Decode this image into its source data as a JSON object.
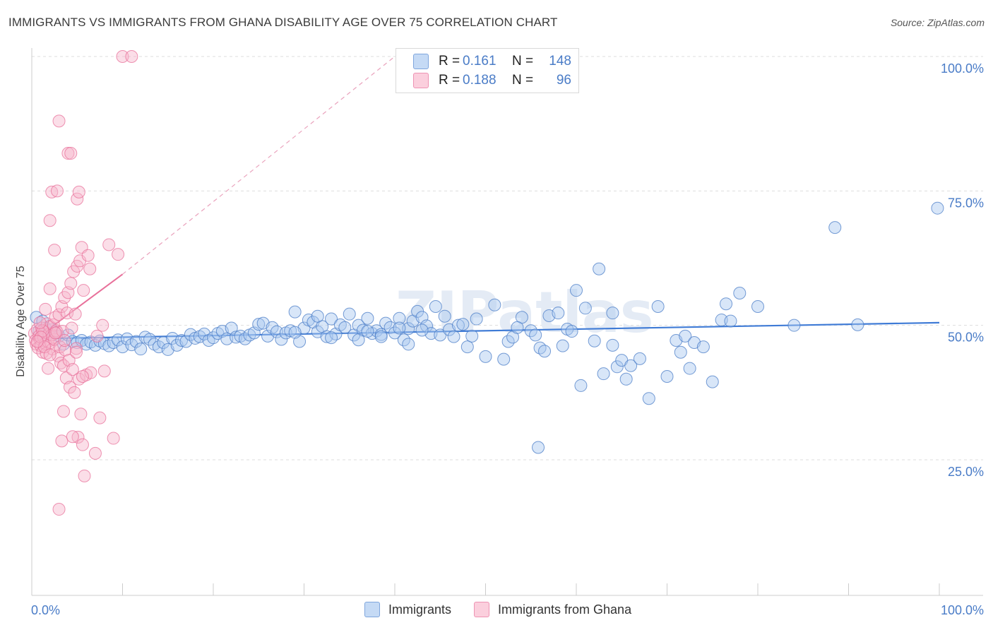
{
  "title": "IMMIGRANTS VS IMMIGRANTS FROM GHANA DISABILITY AGE OVER 75 CORRELATION CHART",
  "source": "Source: ZipAtlas.com",
  "watermark": "ZIPatlas",
  "legend": {
    "rows": [
      {
        "r_label": "R =",
        "r_value": "0.161",
        "n_label": "N =",
        "n_value": "148",
        "color": "#a8c8f0"
      },
      {
        "r_label": "R =",
        "r_value": "0.188",
        "n_label": "N =",
        "n_value": "96",
        "color": "#f7b6cb"
      }
    ]
  },
  "bottom_legend": [
    {
      "label": "Immigrants",
      "color": "#a8c8f0"
    },
    {
      "label": "Immigrants from Ghana",
      "color": "#f7b6cb"
    }
  ],
  "chart_data": {
    "type": "scatter",
    "title": "IMMIGRANTS VS IMMIGRANTS FROM GHANA DISABILITY AGE OVER 75 CORRELATION CHART",
    "xlabel": "",
    "ylabel": "Disability Age Over 75",
    "xlim": [
      0,
      100
    ],
    "ylim": [
      0,
      100
    ],
    "x_tick_labels": [
      "0.0%",
      "100.0%"
    ],
    "y_tick_labels": [
      "25.0%",
      "50.0%",
      "75.0%",
      "100.0%"
    ],
    "y_ticks": [
      25,
      50,
      75,
      100
    ],
    "grid": true,
    "legend_position": "top-center",
    "series": [
      {
        "name": "Immigrants",
        "color": "#4a7cc7",
        "fill": "#a8c8f0",
        "trend": {
          "x": [
            0,
            100
          ],
          "y": [
            47.5,
            50.5
          ],
          "style": "solid"
        },
        "points": [
          [
            0.5,
            51.5
          ],
          [
            0.8,
            49.0
          ],
          [
            1.2,
            50.8
          ],
          [
            1.5,
            49.5
          ],
          [
            1.8,
            48.3
          ],
          [
            2.2,
            49.2
          ],
          [
            2.5,
            48.8
          ],
          [
            3.0,
            48.0
          ],
          [
            3.5,
            46.5
          ],
          [
            4.0,
            48.2
          ],
          [
            4.5,
            47.0
          ],
          [
            5.0,
            46.8
          ],
          [
            5.5,
            47.2
          ],
          [
            6.0,
            46.5
          ],
          [
            6.5,
            46.9
          ],
          [
            7.0,
            46.3
          ],
          [
            7.5,
            47.1
          ],
          [
            8.0,
            46.6
          ],
          [
            8.5,
            46.2
          ],
          [
            9.0,
            46.8
          ],
          [
            9.5,
            47.3
          ],
          [
            10.0,
            46.0
          ],
          [
            10.5,
            47.5
          ],
          [
            11.0,
            46.4
          ],
          [
            11.5,
            47.0
          ],
          [
            12.0,
            45.6
          ],
          [
            12.5,
            47.8
          ],
          [
            13.0,
            47.4
          ],
          [
            13.5,
            46.5
          ],
          [
            14.0,
            46.0
          ],
          [
            14.5,
            46.8
          ],
          [
            15.0,
            45.5
          ],
          [
            15.5,
            47.6
          ],
          [
            16.0,
            46.3
          ],
          [
            16.5,
            47.2
          ],
          [
            17.0,
            47.0
          ],
          [
            17.5,
            48.3
          ],
          [
            18.0,
            47.6
          ],
          [
            18.5,
            47.9
          ],
          [
            19.0,
            48.4
          ],
          [
            19.5,
            47.2
          ],
          [
            20.0,
            47.7
          ],
          [
            20.5,
            48.5
          ],
          [
            21.0,
            48.9
          ],
          [
            21.5,
            47.5
          ],
          [
            22.0,
            49.5
          ],
          [
            22.5,
            47.8
          ],
          [
            23.0,
            48.0
          ],
          [
            23.5,
            47.5
          ],
          [
            24.0,
            48.2
          ],
          [
            24.5,
            48.6
          ],
          [
            25.0,
            50.2
          ],
          [
            25.5,
            50.4
          ],
          [
            26.0,
            48.0
          ],
          [
            26.5,
            49.6
          ],
          [
            27.0,
            48.8
          ],
          [
            27.5,
            47.4
          ],
          [
            28.0,
            48.6
          ],
          [
            28.5,
            49.0
          ],
          [
            29.0,
            52.5
          ],
          [
            29.5,
            47.0
          ],
          [
            30.0,
            49.5
          ],
          [
            30.5,
            51.0
          ],
          [
            31.0,
            50.6
          ],
          [
            31.5,
            48.8
          ],
          [
            32.0,
            49.8
          ],
          [
            32.5,
            47.9
          ],
          [
            33.0,
            51.2
          ],
          [
            33.5,
            48.4
          ],
          [
            34.0,
            50.1
          ],
          [
            34.5,
            49.6
          ],
          [
            35.0,
            52.1
          ],
          [
            35.5,
            48.2
          ],
          [
            36.0,
            50.0
          ],
          [
            36.5,
            49.1
          ],
          [
            37.0,
            51.3
          ],
          [
            37.5,
            48.5
          ],
          [
            38.0,
            49.0
          ],
          [
            38.5,
            48.3
          ],
          [
            39.0,
            50.4
          ],
          [
            39.5,
            49.6
          ],
          [
            40.0,
            48.6
          ],
          [
            40.5,
            51.3
          ],
          [
            41.0,
            47.3
          ],
          [
            41.5,
            49.4
          ],
          [
            42.0,
            50.8
          ],
          [
            42.5,
            52.6
          ],
          [
            43.0,
            51.5
          ],
          [
            43.5,
            49.9
          ],
          [
            44.0,
            48.5
          ],
          [
            44.5,
            53.5
          ],
          [
            45.0,
            48.2
          ],
          [
            45.5,
            51.7
          ],
          [
            46.0,
            49.2
          ],
          [
            46.5,
            47.9
          ],
          [
            47.0,
            50.0
          ],
          [
            48.0,
            46.0
          ],
          [
            48.5,
            48.0
          ],
          [
            49.0,
            51.2
          ],
          [
            50.0,
            44.2
          ],
          [
            51.0,
            53.8
          ],
          [
            52.0,
            43.7
          ],
          [
            52.5,
            47.0
          ],
          [
            53.0,
            47.8
          ],
          [
            54.0,
            51.5
          ],
          [
            55.0,
            49.0
          ],
          [
            55.5,
            48.2
          ],
          [
            56.0,
            45.8
          ],
          [
            56.5,
            45.2
          ],
          [
            57.0,
            51.8
          ],
          [
            58.0,
            52.3
          ],
          [
            59.0,
            49.3
          ],
          [
            60.0,
            56.5
          ],
          [
            60.5,
            38.8
          ],
          [
            61.0,
            53.2
          ],
          [
            62.0,
            47.1
          ],
          [
            62.5,
            60.5
          ],
          [
            63.0,
            41.0
          ],
          [
            64.0,
            52.3
          ],
          [
            64.5,
            42.3
          ],
          [
            65.0,
            43.5
          ],
          [
            65.5,
            40.0
          ],
          [
            66.0,
            42.5
          ],
          [
            67.0,
            43.8
          ],
          [
            68.0,
            36.4
          ],
          [
            69.0,
            53.5
          ],
          [
            70.0,
            40.5
          ],
          [
            71.0,
            47.2
          ],
          [
            71.5,
            45.0
          ],
          [
            72.0,
            48.0
          ],
          [
            73.0,
            46.8
          ],
          [
            74.0,
            46.0
          ],
          [
            75.0,
            39.5
          ],
          [
            76.0,
            51.0
          ],
          [
            76.5,
            54.0
          ],
          [
            77.0,
            50.8
          ],
          [
            78.0,
            56.0
          ],
          [
            80.0,
            53.5
          ],
          [
            55.8,
            27.3
          ],
          [
            88.5,
            68.2
          ],
          [
            91.0,
            50.1
          ],
          [
            99.8,
            71.8
          ],
          [
            41.5,
            46.5
          ],
          [
            36.0,
            47.3
          ],
          [
            33.0,
            47.7
          ],
          [
            29.0,
            48.7
          ],
          [
            31.5,
            51.7
          ],
          [
            38.5,
            47.9
          ],
          [
            40.5,
            49.5
          ],
          [
            47.5,
            50.2
          ],
          [
            53.5,
            49.6
          ],
          [
            58.5,
            46.2
          ],
          [
            59.5,
            48.9
          ],
          [
            64.0,
            46.3
          ],
          [
            72.5,
            42.0
          ],
          [
            84.0,
            50.0
          ],
          [
            37.0,
            48.9
          ],
          [
            43.0,
            49.1
          ]
        ]
      },
      {
        "name": "Immigrants from Ghana",
        "color": "#e8709a",
        "fill": "#f7b6cb",
        "trend": {
          "x": [
            0,
            10
          ],
          "y": [
            47.0,
            59.5
          ],
          "style": "solid",
          "extension_to": [
            40,
            100
          ],
          "extension_style": "dashed"
        },
        "points": [
          [
            0.3,
            48.5
          ],
          [
            0.4,
            47.2
          ],
          [
            0.5,
            46.5
          ],
          [
            0.6,
            49.2
          ],
          [
            0.7,
            45.8
          ],
          [
            0.8,
            48.0
          ],
          [
            0.9,
            47.5
          ],
          [
            1.0,
            46.2
          ],
          [
            1.1,
            49.5
          ],
          [
            1.2,
            45.0
          ],
          [
            1.3,
            47.8
          ],
          [
            1.4,
            48.8
          ],
          [
            1.5,
            46.6
          ],
          [
            1.6,
            44.8
          ],
          [
            1.7,
            50.3
          ],
          [
            1.8,
            47.0
          ],
          [
            1.9,
            48.4
          ],
          [
            2.0,
            49.8
          ],
          [
            2.1,
            46.8
          ],
          [
            2.2,
            48.2
          ],
          [
            2.3,
            45.6
          ],
          [
            2.4,
            50.1
          ],
          [
            2.5,
            47.4
          ],
          [
            2.6,
            51.5
          ],
          [
            2.7,
            49.0
          ],
          [
            2.8,
            48.7
          ],
          [
            2.9,
            44.3
          ],
          [
            3.0,
            52.0
          ],
          [
            3.1,
            46.0
          ],
          [
            3.2,
            43.0
          ],
          [
            3.3,
            53.5
          ],
          [
            3.4,
            48.9
          ],
          [
            3.5,
            42.5
          ],
          [
            3.6,
            55.2
          ],
          [
            3.7,
            45.4
          ],
          [
            3.8,
            40.2
          ],
          [
            3.9,
            52.3
          ],
          [
            4.0,
            56.1
          ],
          [
            4.1,
            43.5
          ],
          [
            4.2,
            38.5
          ],
          [
            4.3,
            57.8
          ],
          [
            4.4,
            49.5
          ],
          [
            4.5,
            41.8
          ],
          [
            4.6,
            60.0
          ],
          [
            4.7,
            37.5
          ],
          [
            4.8,
            52.1
          ],
          [
            4.9,
            45.7
          ],
          [
            5.0,
            61.0
          ],
          [
            5.1,
            29.2
          ],
          [
            5.2,
            40.0
          ],
          [
            5.3,
            62.0
          ],
          [
            5.4,
            33.5
          ],
          [
            5.5,
            64.5
          ],
          [
            5.6,
            27.8
          ],
          [
            5.7,
            56.5
          ],
          [
            5.8,
            22.0
          ],
          [
            6.0,
            40.8
          ],
          [
            6.2,
            63.0
          ],
          [
            6.5,
            41.2
          ],
          [
            7.0,
            26.2
          ],
          [
            7.2,
            48.0
          ],
          [
            7.5,
            32.8
          ],
          [
            8.0,
            41.5
          ],
          [
            8.5,
            65.0
          ],
          [
            9.0,
            29.0
          ],
          [
            9.5,
            63.2
          ],
          [
            10.0,
            100.0
          ],
          [
            11.0,
            100.0
          ],
          [
            2.0,
            69.5
          ],
          [
            2.2,
            74.8
          ],
          [
            2.8,
            75.0
          ],
          [
            3.0,
            88.0
          ],
          [
            4.0,
            82.0
          ],
          [
            4.3,
            82.0
          ],
          [
            5.0,
            73.5
          ],
          [
            5.2,
            74.8
          ],
          [
            2.0,
            56.8
          ],
          [
            2.5,
            64.0
          ],
          [
            3.0,
            15.8
          ],
          [
            3.3,
            28.5
          ],
          [
            4.5,
            29.3
          ],
          [
            3.5,
            34.0
          ],
          [
            1.5,
            53.0
          ],
          [
            1.8,
            42.0
          ],
          [
            2.6,
            48.6
          ],
          [
            1.2,
            49.0
          ],
          [
            0.9,
            50.5
          ],
          [
            1.0,
            47.8
          ],
          [
            1.4,
            46.0
          ],
          [
            0.6,
            47.0
          ],
          [
            2.0,
            44.5
          ],
          [
            3.6,
            47.2
          ],
          [
            4.9,
            45.0
          ],
          [
            5.6,
            40.5
          ],
          [
            6.4,
            60.5
          ],
          [
            7.8,
            50.0
          ]
        ]
      }
    ]
  }
}
